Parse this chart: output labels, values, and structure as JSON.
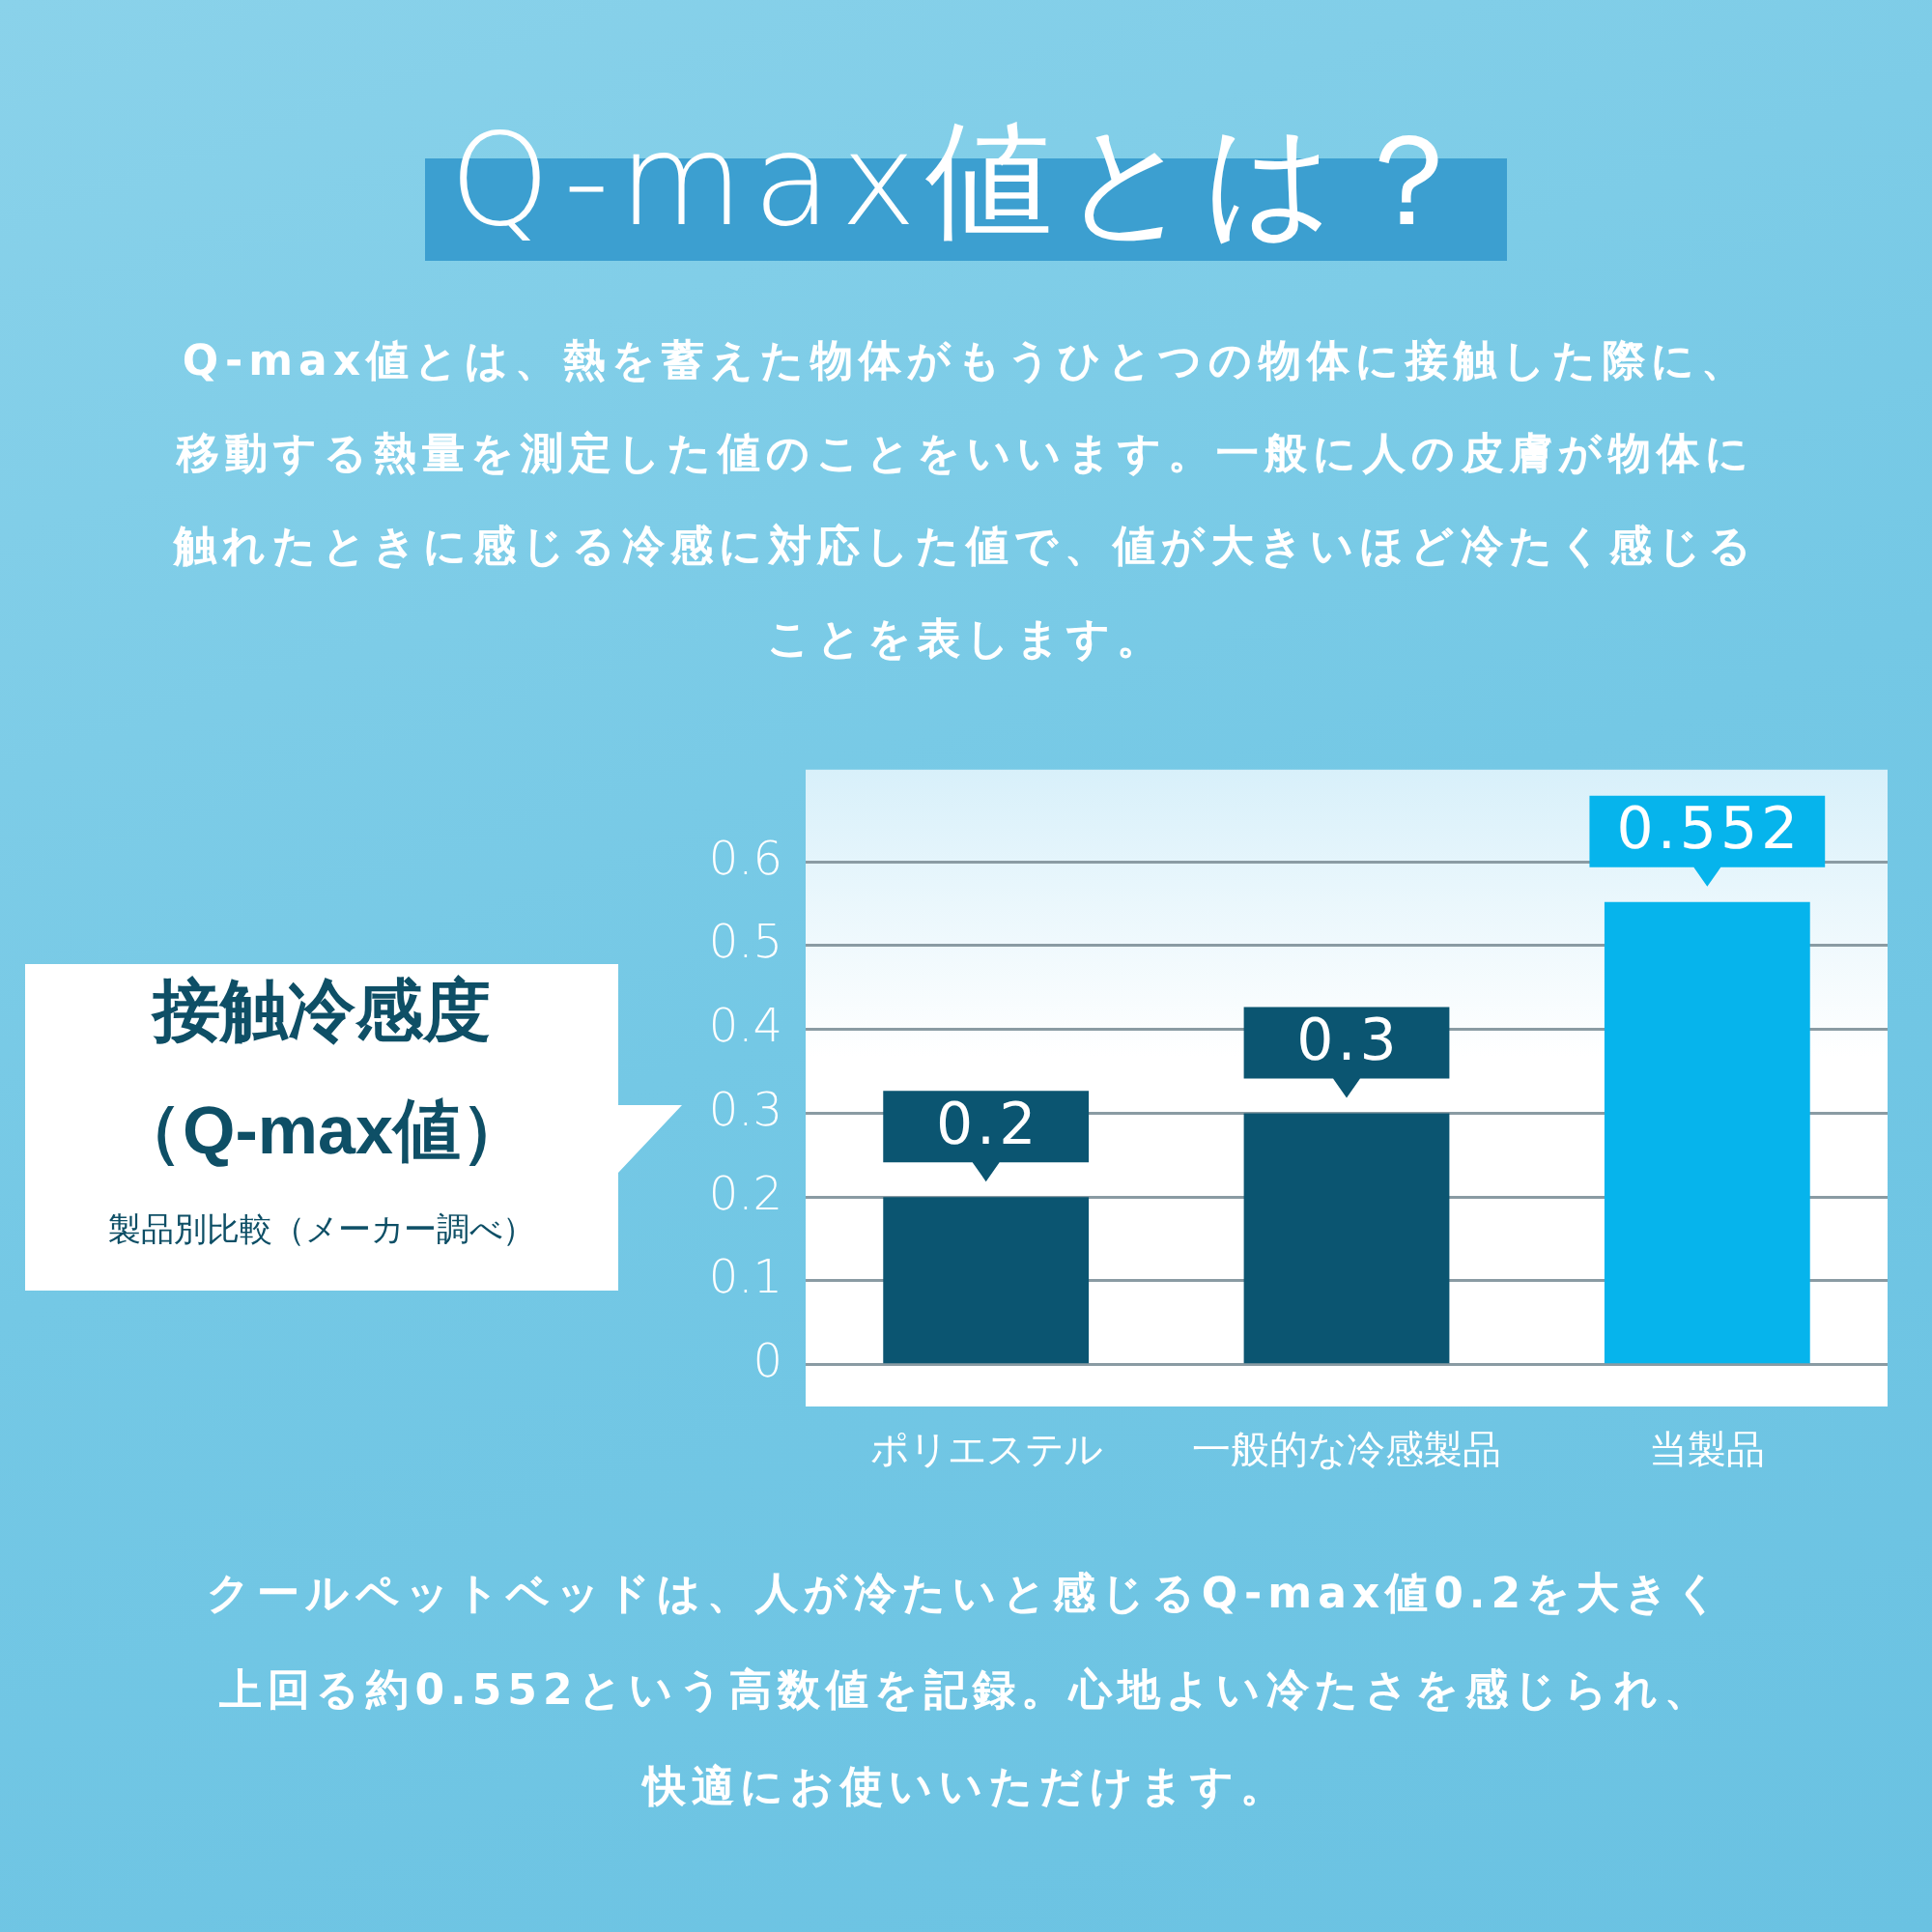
{
  "chart_data": {
    "type": "bar",
    "title": "Q-max値とは？",
    "subtitle": "Q-max値とは、熱を蓄えた物体がもうひとつの物体に接触した際に、移動する熱量を測定した値のことをいいます。一般に人の皮膚が物体に触れたときに感じる冷感に対応した値で、値が大きいほど冷たく感じることを表します。",
    "ylabel": "接触冷感度（Q-max値）",
    "annotations": [
      "製品別比較（メーカー調べ）",
      "クールペットベッドは、人が冷たいと感じるQ-max値0.2を大きく上回る約0.552という高数値を記録。心地よい冷たさを感じられ、快適にお使いいただけます。"
    ],
    "categories": [
      "ポリエステル",
      "一般的な冷感製品",
      "当製品"
    ],
    "values": [
      0.2,
      0.3,
      0.552
    ],
    "colors": [
      "#0b5571",
      "#0b5571",
      "#06b4ec"
    ],
    "ylim": [
      -0.05,
      0.71
    ],
    "yticks": [
      0,
      0.1,
      0.2,
      0.3,
      0.4,
      0.5,
      0.6
    ],
    "grid": "y",
    "data_labels": true
  }
}
